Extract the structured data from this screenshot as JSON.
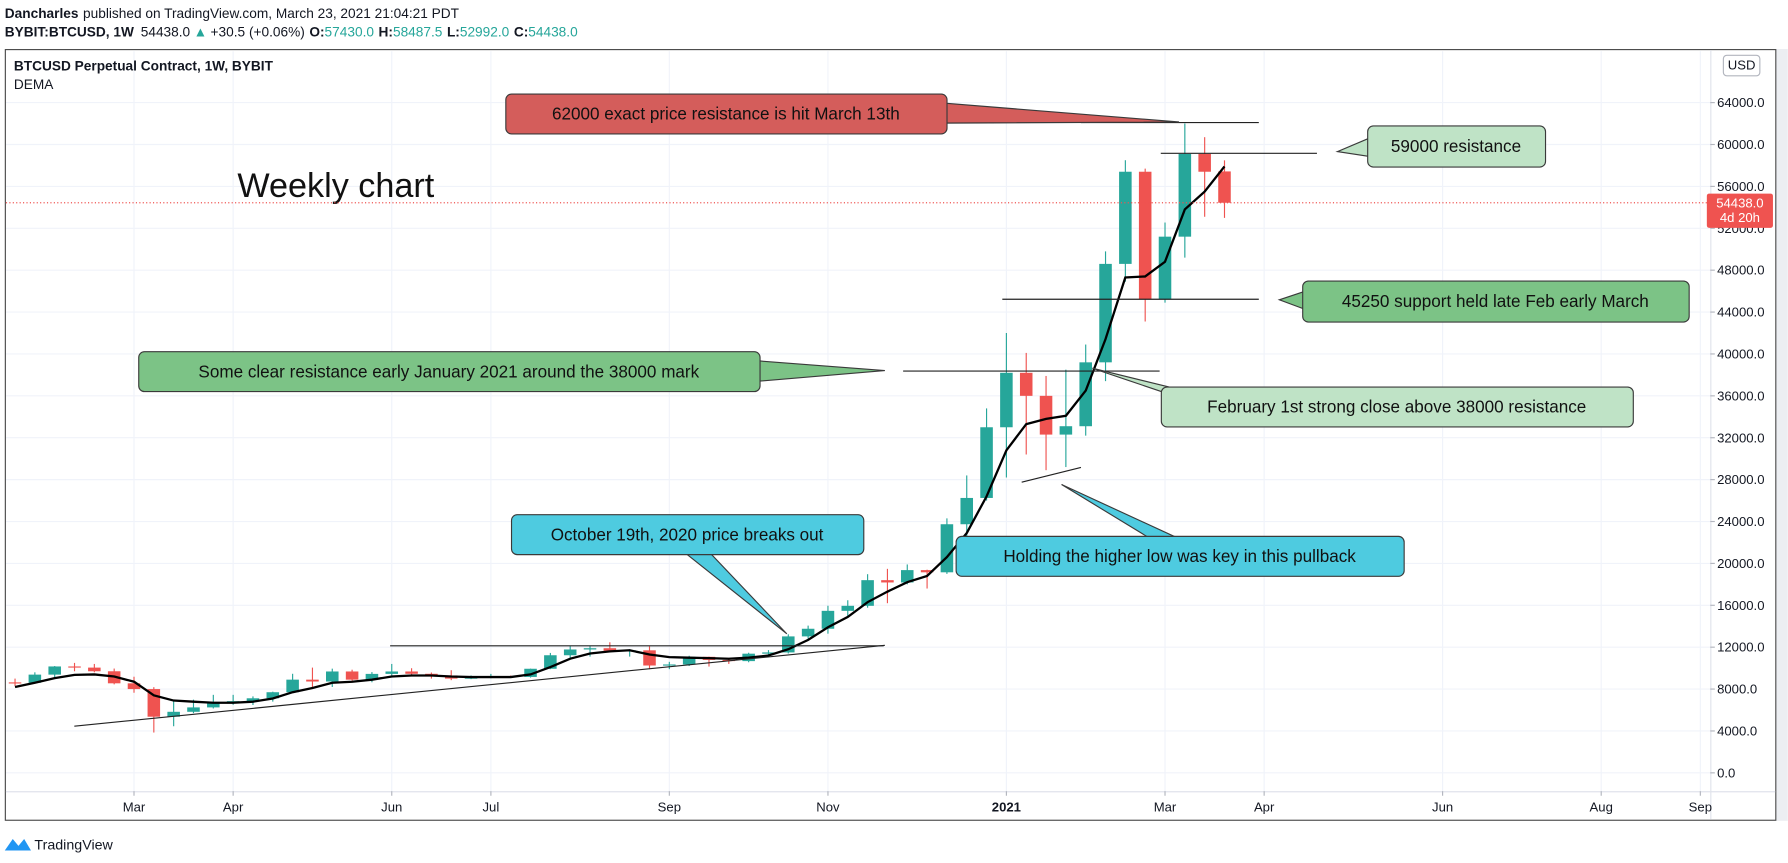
{
  "header": {
    "author": "Dancharles",
    "published": "published on TradingView.com, March 23, 2021 21:04:21 PDT",
    "symbol": "BYBIT:BTCUSD, 1W",
    "price": "54438.0",
    "arrow": "▲",
    "change": "+30.5 (+0.06%)",
    "ohlc": [
      {
        "key": "O:",
        "value": "57430.0"
      },
      {
        "key": "H:",
        "value": "58487.5"
      },
      {
        "key": "L:",
        "value": "52992.0"
      },
      {
        "key": "C:",
        "value": "54438.0"
      }
    ]
  },
  "footer": {
    "brand": "TradingView"
  },
  "chart_data": {
    "type": "candlestick",
    "title": "BTCUSD Perpetual Contract, 1W, BYBIT",
    "chart_label": "Weekly chart",
    "currency": "USD",
    "last_price_label": "54438.0",
    "countdown": "4d 20h",
    "up_color": "#26a69a",
    "down_color": "#ef5350",
    "grid": true,
    "categories": [
      null,
      null,
      null,
      null,
      null,
      null,
      null,
      null,
      null,
      null,
      null,
      null,
      null,
      null,
      null,
      null,
      null,
      null,
      null,
      null,
      null,
      null,
      null,
      null,
      null,
      null,
      null,
      null,
      null,
      null,
      null,
      null,
      null,
      null,
      null,
      null,
      null,
      null,
      null,
      null,
      null,
      null,
      null,
      null,
      null,
      null,
      null,
      null,
      null,
      null,
      null,
      null,
      null,
      null,
      null,
      null,
      null,
      null,
      null,
      null,
      null,
      null
    ],
    "open": [
      8640,
      8600,
      9380,
      10160,
      10050,
      9700,
      8550,
      8000,
      5360,
      5830,
      6250,
      6770,
      6850,
      7120,
      7700,
      8900,
      8720,
      9680,
      8900,
      9450,
      9680,
      9460,
      9300,
      9000,
      9100,
      9240,
      9160,
      9940,
      11230,
      11780,
      11900,
      11650,
      11700,
      10250,
      10350,
      11080,
      10780,
      10670,
      11380,
      11500,
      13030,
      13760,
      15470,
      15950,
      18400,
      18180,
      19360,
      19150,
      23740,
      26250,
      33000,
      38200,
      36000,
      32300,
      33100,
      39200,
      48600,
      57400,
      45200,
      51200,
      59100,
      57430
    ],
    "high": [
      9000,
      9600,
      10200,
      10500,
      10400,
      9960,
      9180,
      8180,
      6880,
      6990,
      7450,
      7450,
      7300,
      7750,
      9460,
      10050,
      9950,
      9850,
      9620,
      10400,
      9990,
      9580,
      9800,
      9300,
      9450,
      9300,
      9950,
      11450,
      12100,
      12100,
      12470,
      11800,
      12080,
      10600,
      11180,
      11100,
      10950,
      11470,
      11720,
      13230,
      14060,
      15960,
      16480,
      18970,
      19480,
      19900,
      19400,
      24300,
      28400,
      34800,
      42000,
      40100,
      37900,
      38500,
      40900,
      49800,
      58500,
      57700,
      52550,
      62000,
      60700,
      58487.5
    ],
    "low": [
      8280,
      8540,
      9150,
      9700,
      9600,
      8450,
      7650,
      3850,
      4450,
      5700,
      6150,
      6500,
      6480,
      6800,
      7620,
      8100,
      8200,
      8800,
      8650,
      9250,
      9250,
      9000,
      8850,
      8950,
      9030,
      9100,
      9100,
      9900,
      10980,
      11100,
      11550,
      11100,
      9900,
      9900,
      10200,
      10150,
      10400,
      10560,
      11200,
      11400,
      12820,
      13290,
      14820,
      15770,
      16200,
      18000,
      17600,
      19000,
      21900,
      26000,
      28200,
      30400,
      28900,
      29200,
      32200,
      37400,
      46900,
      43100,
      44900,
      49200,
      53100,
      52992
    ],
    "close": [
      8600,
      9380,
      10160,
      10050,
      9700,
      8550,
      8000,
      5360,
      5830,
      6250,
      6770,
      6850,
      7120,
      7700,
      8900,
      8720,
      9680,
      8900,
      9450,
      9680,
      9460,
      9300,
      9000,
      9100,
      9240,
      9160,
      9940,
      11230,
      11780,
      11900,
      11650,
      11700,
      10250,
      10350,
      11080,
      10780,
      10670,
      11380,
      11500,
      13030,
      13760,
      15470,
      15950,
      18400,
      18180,
      19360,
      19150,
      23740,
      26250,
      33000,
      38200,
      36000,
      32300,
      33100,
      39200,
      48600,
      57400,
      45200,
      51200,
      59100,
      57400,
      54438
    ],
    "dema": {
      "name": "DEMA",
      "color": "#000000",
      "values": [
        8200,
        8600,
        9050,
        9350,
        9400,
        9200,
        8700,
        7400,
        6900,
        6800,
        6700,
        6700,
        6800,
        7100,
        7700,
        8100,
        8600,
        8700,
        8900,
        9200,
        9300,
        9300,
        9200,
        9150,
        9150,
        9150,
        9400,
        10100,
        10900,
        11400,
        11600,
        11700,
        11300,
        11050,
        11000,
        10950,
        10900,
        11000,
        11200,
        11800,
        12700,
        13900,
        14900,
        16300,
        17300,
        18200,
        18800,
        20600,
        22900,
        26400,
        30800,
        33300,
        33800,
        34100,
        36500,
        41400,
        47300,
        47400,
        48800,
        53800,
        55500,
        57900
      ]
    },
    "xlim": [
      -0.46,
      85.5
    ],
    "xticks": [
      {
        "value": 6,
        "label": "Mar"
      },
      {
        "value": 11,
        "label": "Apr"
      },
      {
        "value": 19,
        "label": "Jun"
      },
      {
        "value": 24,
        "label": "Jul"
      },
      {
        "value": 33,
        "label": "Sep"
      },
      {
        "value": 41,
        "label": "Nov"
      },
      {
        "value": 50,
        "label": "2021",
        "bold": true
      },
      {
        "value": 58,
        "label": "Mar"
      },
      {
        "value": 63,
        "label": "Apr"
      },
      {
        "value": 72,
        "label": "Jun"
      },
      {
        "value": 80,
        "label": "Aug"
      },
      {
        "value": 85,
        "label": "Sep"
      }
    ],
    "ylim": [
      -1750,
      68900
    ],
    "yticks": [
      {
        "value": 0,
        "label": "0.0"
      },
      {
        "value": 4000,
        "label": "4000.0"
      },
      {
        "value": 8000,
        "label": "8000.0"
      },
      {
        "value": 12000,
        "label": "12000.0"
      },
      {
        "value": 16000,
        "label": "16000.0"
      },
      {
        "value": 20000,
        "label": "20000.0"
      },
      {
        "value": 24000,
        "label": "24000.0"
      },
      {
        "value": 28000,
        "label": "28000.0"
      },
      {
        "value": 32000,
        "label": "32000.0"
      },
      {
        "value": 36000,
        "label": "36000.0"
      },
      {
        "value": 40000,
        "label": "40000.0"
      },
      {
        "value": 44000,
        "label": "44000.0"
      },
      {
        "value": 48000,
        "label": "48000.0"
      },
      {
        "value": 52000,
        "label": "52000.0"
      },
      {
        "value": 56000,
        "label": "56000.0"
      },
      {
        "value": 60000,
        "label": "60000.0"
      },
      {
        "value": 64000,
        "label": "64000.0"
      }
    ],
    "annotations": [
      "62000 exact price resistance is hit March 13th",
      "59000 resistance",
      "45250 support held late Feb early March",
      "Some clear resistance early January 2021 around the 38000 mark",
      "February 1st strong close above 38000 resistance",
      "October 19th, 2020 price breaks out",
      "Holding the higher low was key in this pullback"
    ]
  }
}
